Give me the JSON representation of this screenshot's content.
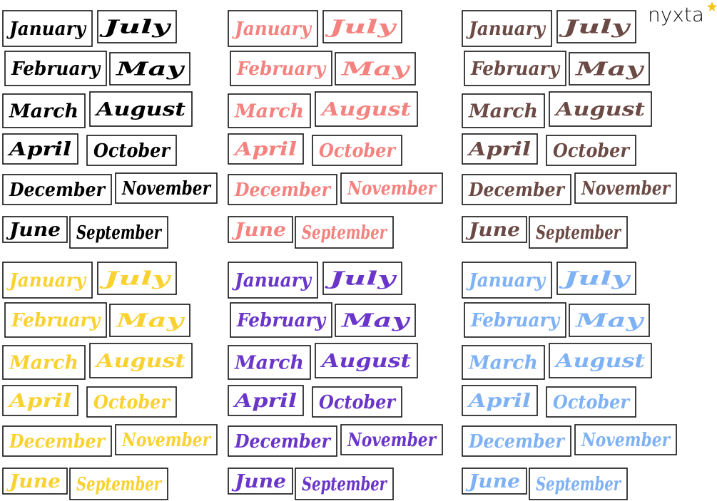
{
  "brand": "nyxta",
  "months": {
    "rows": [
      [
        "January",
        "July"
      ],
      [
        "February",
        "May"
      ],
      [
        "March",
        "August"
      ],
      [
        "April",
        "October"
      ],
      [
        "December",
        "November"
      ],
      [
        "June",
        "September"
      ]
    ]
  },
  "groups": [
    {
      "color": "#000000"
    },
    {
      "color": "#f4827f"
    },
    {
      "color": "#6b4a45"
    },
    {
      "color": "#f9d231"
    },
    {
      "color": "#6a35c9"
    },
    {
      "color": "#7fb2f5"
    }
  ]
}
